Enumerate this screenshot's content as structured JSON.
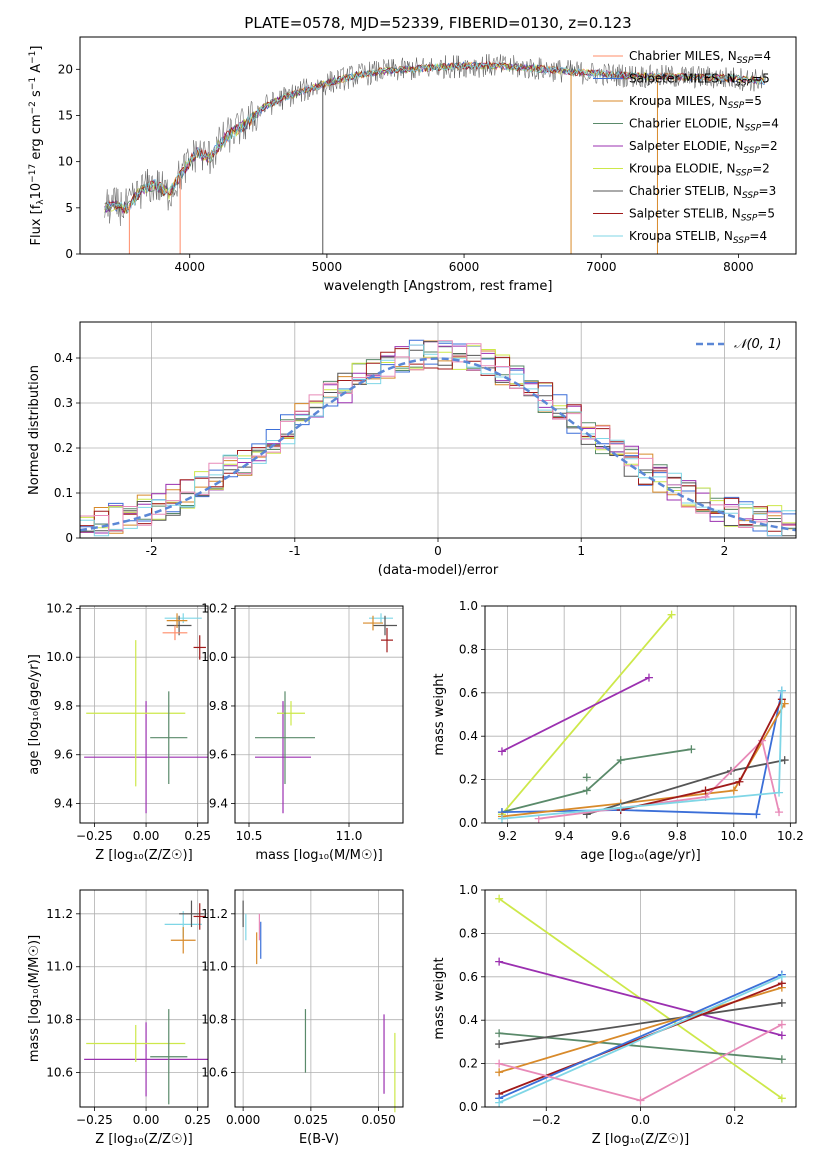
{
  "page_title": "PLATE=0578, MJD=52339, FIBERID=0130, z=0.123",
  "colors": {
    "chab_miles": "#ff8c69",
    "salp_miles": "#3b6fd8",
    "krou_miles": "#d88a2a",
    "chab_elodie": "#5a8a6a",
    "salp_elodie": "#9b30b0",
    "krou_elodie": "#cde84a",
    "chab_stelib": "#555555",
    "salp_stelib": "#a01a1a",
    "krou_stelib": "#7fd6e6",
    "pink": "#e88ab8",
    "gauss": "#5b87d6",
    "grid": "#b0b0b0"
  },
  "chart_data": [
    {
      "type": "line",
      "id": "spectrum",
      "xlabel": "wavelength [Angstrom, rest frame]",
      "ylabel_parts": [
        "Flux [f",
        "λ",
        "10",
        "−17",
        " erg cm",
        "−2",
        " s",
        "−1",
        " A",
        "−1",
        "]"
      ],
      "xlim": [
        3200,
        8420
      ],
      "ylim": [
        0,
        23.5
      ],
      "xticks": [
        4000,
        5000,
        6000,
        7000,
        8000
      ],
      "yticks": [
        0,
        5,
        10,
        15,
        20
      ],
      "grid": false,
      "legend_position": "top-right",
      "continuum": {
        "x": [
          3380,
          3450,
          3550,
          3650,
          3750,
          3850,
          3950,
          4050,
          4150,
          4250,
          4400,
          4550,
          4700,
          4850,
          5000,
          5200,
          5400,
          5600,
          5800,
          6000,
          6200,
          6400,
          6600,
          6800,
          7000,
          7200,
          7400,
          7600,
          7800,
          8000,
          8200
        ],
        "y": [
          5,
          5.2,
          5,
          7,
          7.5,
          6.5,
          9,
          11,
          10.5,
          12.5,
          14,
          16,
          17,
          17.8,
          18.5,
          19.3,
          19.8,
          20,
          20.2,
          20.4,
          20.4,
          20.2,
          20,
          19.7,
          19.5,
          19.3,
          19.2,
          19.2,
          19.1,
          19,
          18.7
        ]
      },
      "spikes": [
        {
          "x": 3560,
          "y": 0
        },
        {
          "x": 3930,
          "y": 0
        },
        {
          "x": 4970,
          "y": 0
        },
        {
          "x": 6780,
          "y": 0
        },
        {
          "x": 7410,
          "y": 0
        }
      ],
      "series": [
        {
          "key": "chab_miles",
          "sub": "SSP",
          "n": "4",
          "label": "Chabrier MILES"
        },
        {
          "key": "salp_miles",
          "sub": "SSP",
          "n": "5",
          "label": "Salpeter MILES"
        },
        {
          "key": "krou_miles",
          "sub": "SSP",
          "n": "5",
          "label": "Kroupa MILES"
        },
        {
          "key": "chab_elodie",
          "sub": "SSP",
          "n": "4",
          "label": "Chabrier ELODIE"
        },
        {
          "key": "salp_elodie",
          "sub": "SSP",
          "n": "2",
          "label": "Salpeter ELODIE"
        },
        {
          "key": "krou_elodie",
          "sub": "SSP",
          "n": "2",
          "label": "Kroupa ELODIE"
        },
        {
          "key": "chab_stelib",
          "sub": "SSP",
          "n": "3",
          "label": "Chabrier STELIB"
        },
        {
          "key": "salp_stelib",
          "sub": "SSP",
          "n": "5",
          "label": "Salpeter STELIB"
        },
        {
          "key": "krou_stelib",
          "sub": "SSP",
          "n": "4",
          "label": "Kroupa STELIB"
        }
      ]
    },
    {
      "type": "histogram",
      "id": "residuals",
      "xlabel": "(data-model)/error",
      "ylabel": "Normed distribution",
      "xlim": [
        -2.5,
        2.5
      ],
      "ylim": [
        0,
        0.48
      ],
      "xticks": [
        -2,
        -1,
        0,
        1,
        2
      ],
      "yticks": [
        0,
        0.1,
        0.2,
        0.3,
        0.4
      ],
      "grid": true,
      "legend_position": "top-right",
      "legend_label": "𝒩(0, 1)",
      "bin_width": 0.1,
      "series_keys": [
        "salp_miles",
        "krou_miles",
        "chab_elodie",
        "salp_elodie",
        "krou_elodie",
        "chab_stelib",
        "salp_stelib",
        "krou_stelib",
        "pink"
      ]
    },
    {
      "type": "errorbar",
      "id": "age_vs_z",
      "xlabel": "Z [log₁₀(Z/Z☉)]",
      "ylabel": "age  [log₁₀(age/yr)]",
      "xlim": [
        -0.32,
        0.3
      ],
      "ylim": [
        9.32,
        10.21
      ],
      "xticks": [
        -0.25,
        0,
        0.25
      ],
      "xtick_labels": [
        "−0.25",
        "0.00",
        "0.25"
      ],
      "yticks": [
        9.4,
        9.6,
        9.8,
        10,
        10.2
      ],
      "ytick_labels": [
        "9.4",
        "9.6",
        "9.8",
        "10.0",
        "10.2"
      ],
      "grid": true,
      "points": [
        {
          "key": "salp_elodie",
          "x": 0,
          "xerr": 0.3,
          "y": 9.59,
          "yerr": 0.23
        },
        {
          "key": "krou_elodie",
          "x": -0.05,
          "xerr": 0.24,
          "y": 9.77,
          "yerr": 0.3
        },
        {
          "key": "chab_elodie",
          "x": 0.11,
          "xerr": 0.09,
          "y": 9.67,
          "yerr": 0.19
        },
        {
          "key": "krou_stelib",
          "x": 0.18,
          "xerr": 0.09,
          "y": 10.16,
          "yerr": 0.02
        },
        {
          "key": "chab_stelib",
          "x": 0.16,
          "xerr": 0.06,
          "y": 10.13,
          "yerr": 0.04
        },
        {
          "key": "krou_miles",
          "x": 0.15,
          "xerr": 0.05,
          "y": 10.15,
          "yerr": 0.03
        },
        {
          "key": "chab_miles",
          "x": 0.14,
          "xerr": 0.06,
          "y": 10.1,
          "yerr": 0.03
        },
        {
          "key": "salp_stelib",
          "x": 0.26,
          "xerr": 0.03,
          "y": 10.04,
          "yerr": 0.05
        }
      ]
    },
    {
      "type": "errorbar",
      "id": "age_vs_mass",
      "xlabel": "mass [log₁₀(M/M☉)]",
      "ylabel": "",
      "xlim": [
        10.43,
        11.27
      ],
      "ylim": [
        9.32,
        10.21
      ],
      "xticks": [
        10.5,
        11
      ],
      "xtick_labels": [
        "10.5",
        "11.0"
      ],
      "yticks": [
        9.4,
        9.6,
        9.8,
        10,
        10.2
      ],
      "ytick_labels": [
        "9.4",
        "9.6",
        "9.8",
        "10.0",
        "10.2"
      ],
      "grid": true,
      "points": [
        {
          "key": "salp_elodie",
          "x": 10.67,
          "xerr": 0.14,
          "y": 9.59,
          "yerr": 0.23
        },
        {
          "key": "krou_elodie",
          "x": 10.71,
          "xerr": 0.07,
          "y": 9.77,
          "yerr": 0.05
        },
        {
          "key": "chab_elodie",
          "x": 10.68,
          "xerr": 0.15,
          "y": 9.67,
          "yerr": 0.19
        },
        {
          "key": "krou_stelib",
          "x": 11.16,
          "xerr": 0.06,
          "y": 10.16,
          "yerr": 0.02
        },
        {
          "key": "chab_stelib",
          "x": 11.18,
          "xerr": 0.06,
          "y": 10.13,
          "yerr": 0.04
        },
        {
          "key": "krou_miles",
          "x": 11.12,
          "xerr": 0.05,
          "y": 10.14,
          "yerr": 0.03
        },
        {
          "key": "salp_stelib",
          "x": 11.19,
          "xerr": 0.03,
          "y": 10.07,
          "yerr": 0.05
        }
      ]
    },
    {
      "type": "line",
      "id": "weight_vs_age",
      "xlabel": "age  [log₁₀(age/yr)]",
      "ylabel": "mass weight",
      "xlim": [
        9.12,
        10.22
      ],
      "ylim": [
        0,
        1
      ],
      "xticks": [
        9.2,
        9.4,
        9.6,
        9.8,
        10,
        10.2
      ],
      "xtick_labels": [
        "9.2",
        "9.4",
        "9.6",
        "9.8",
        "10.0",
        "10.2"
      ],
      "yticks": [
        0,
        0.2,
        0.4,
        0.6,
        0.8,
        1
      ],
      "ytick_labels": [
        "0.0",
        "0.2",
        "0.4",
        "0.6",
        "0.8",
        "1.0"
      ],
      "grid": true,
      "series": [
        {
          "key": "krou_elodie",
          "x": [
            9.18,
            9.78
          ],
          "y": [
            0.04,
            0.96
          ]
        },
        {
          "key": "salp_elodie",
          "x": [
            9.18,
            9.7
          ],
          "y": [
            0.33,
            0.67
          ]
        },
        {
          "key": "chab_elodie",
          "x": [
            9.18,
            9.48,
            9.6,
            9.85
          ],
          "y": [
            0.05,
            0.15,
            0.29,
            0.34
          ]
        },
        {
          "key": "chab_elodie",
          "x": [
            9.48
          ],
          "y": [
            0.21
          ]
        },
        {
          "key": "salp_miles",
          "x": [
            9.18,
            9.6,
            10.08,
            10.17
          ],
          "y": [
            0.05,
            0.06,
            0.04,
            0.61
          ]
        },
        {
          "key": "krou_miles",
          "x": [
            9.18,
            9.6,
            10,
            10.18
          ],
          "y": [
            0.03,
            0.09,
            0.15,
            0.55
          ]
        },
        {
          "key": "chab_stelib",
          "x": [
            9.48,
            9.99,
            10.18
          ],
          "y": [
            0.04,
            0.24,
            0.29
          ]
        },
        {
          "key": "pink",
          "x": [
            9.31,
            9.9,
            10.1,
            10.16
          ],
          "y": [
            0.02,
            0.12,
            0.38,
            0.05
          ]
        },
        {
          "key": "salp_stelib",
          "x": [
            9.6,
            9.9,
            10.02,
            10.17
          ],
          "y": [
            0.06,
            0.15,
            0.19,
            0.57
          ]
        },
        {
          "key": "krou_stelib",
          "x": [
            9.18,
            9.6,
            10.16,
            10.17
          ],
          "y": [
            0.02,
            0.07,
            0.14,
            0.61
          ]
        }
      ]
    },
    {
      "type": "errorbar",
      "id": "mass_vs_z",
      "xlabel": "Z [log₁₀(Z/Z☉)]",
      "ylabel": "mass [log₁₀(M/M☉)]",
      "xlim": [
        -0.32,
        0.3
      ],
      "ylim": [
        10.47,
        11.29
      ],
      "xticks": [
        -0.25,
        0,
        0.25
      ],
      "xtick_labels": [
        "−0.25",
        "0.00",
        "0.25"
      ],
      "yticks": [
        10.6,
        10.8,
        11,
        11.2
      ],
      "ytick_labels": [
        "10.6",
        "10.8",
        "11.0",
        "11.2"
      ],
      "grid": true,
      "points": [
        {
          "key": "salp_elodie",
          "x": 0,
          "xerr": 0.3,
          "y": 10.65,
          "yerr": 0.14
        },
        {
          "key": "krou_elodie",
          "x": -0.05,
          "xerr": 0.24,
          "y": 10.71,
          "yerr": 0.07
        },
        {
          "key": "chab_elodie",
          "x": 0.11,
          "xerr": 0.09,
          "y": 10.66,
          "yerr": 0.18
        },
        {
          "key": "krou_stelib",
          "x": 0.18,
          "xerr": 0.09,
          "y": 11.16,
          "yerr": 0.05
        },
        {
          "key": "chab_stelib",
          "x": 0.22,
          "xerr": 0.06,
          "y": 11.2,
          "yerr": 0.05
        },
        {
          "key": "krou_miles",
          "x": 0.18,
          "xerr": 0.06,
          "y": 11.1,
          "yerr": 0.05
        },
        {
          "key": "salp_stelib",
          "x": 0.26,
          "xerr": 0.03,
          "y": 11.19,
          "yerr": 0.05
        }
      ]
    },
    {
      "type": "errorbar",
      "id": "mass_vs_ebv",
      "xlabel": "E(B-V)",
      "ylabel": "",
      "xlim": [
        -0.003,
        0.059
      ],
      "ylim": [
        10.47,
        11.29
      ],
      "xticks": [
        0,
        0.025,
        0.05
      ],
      "xtick_labels": [
        "0.000",
        "0.025",
        "0.050"
      ],
      "yticks": [
        10.6,
        10.8,
        11,
        11.2
      ],
      "ytick_labels": [
        "10.6",
        "10.8",
        "11.0",
        "11.2"
      ],
      "grid": true,
      "points": [
        {
          "key": "chab_stelib",
          "x": 0,
          "xerr": 0,
          "y": 11.2,
          "yerr": 0.05
        },
        {
          "key": "krou_stelib",
          "x": 0.001,
          "xerr": 0,
          "y": 11.15,
          "yerr": 0.05
        },
        {
          "key": "krou_miles",
          "x": 0.005,
          "xerr": 0,
          "y": 11.07,
          "yerr": 0.06
        },
        {
          "key": "salp_miles",
          "x": 0.0065,
          "xerr": 0,
          "y": 11.1,
          "yerr": 0.07
        },
        {
          "key": "pink",
          "x": 0.006,
          "xerr": 0,
          "y": 11.15,
          "yerr": 0.05
        },
        {
          "key": "chab_elodie",
          "x": 0.023,
          "xerr": 0,
          "y": 10.72,
          "yerr": 0.12
        },
        {
          "key": "salp_elodie",
          "x": 0.052,
          "xerr": 0,
          "y": 10.67,
          "yerr": 0.15
        },
        {
          "key": "krou_elodie",
          "x": 0.056,
          "xerr": 0,
          "y": 10.6,
          "yerr": 0.15
        }
      ]
    },
    {
      "type": "line",
      "id": "weight_vs_z",
      "xlabel": "Z [log₁₀(Z/Z☉)]",
      "ylabel": "mass weight",
      "xlim": [
        -0.33,
        0.33
      ],
      "ylim": [
        0,
        1
      ],
      "xticks": [
        -0.2,
        0,
        0.2
      ],
      "xtick_labels": [
        "−0.2",
        "0.0",
        "0.2"
      ],
      "yticks": [
        0,
        0.2,
        0.4,
        0.6,
        0.8,
        1
      ],
      "ytick_labels": [
        "0.0",
        "0.2",
        "0.4",
        "0.6",
        "0.8",
        "1.0"
      ],
      "grid": true,
      "series": [
        {
          "key": "krou_elodie",
          "x": [
            -0.3,
            0.3
          ],
          "y": [
            0.96,
            0.04
          ]
        },
        {
          "key": "salp_elodie",
          "x": [
            -0.3,
            0.3
          ],
          "y": [
            0.67,
            0.33
          ]
        },
        {
          "key": "chab_elodie",
          "x": [
            -0.3,
            0.3
          ],
          "y": [
            0.34,
            0.22
          ]
        },
        {
          "key": "chab_stelib",
          "x": [
            -0.3,
            0.3
          ],
          "y": [
            0.29,
            0.48
          ]
        },
        {
          "key": "krou_miles",
          "x": [
            -0.3,
            0.3
          ],
          "y": [
            0.16,
            0.55
          ]
        },
        {
          "key": "salp_stelib",
          "x": [
            -0.3,
            0.3
          ],
          "y": [
            0.06,
            0.57
          ]
        },
        {
          "key": "salp_miles",
          "x": [
            -0.3,
            0.3
          ],
          "y": [
            0.04,
            0.61
          ]
        },
        {
          "key": "krou_stelib",
          "x": [
            -0.3,
            0.3
          ],
          "y": [
            0.02,
            0.6
          ]
        },
        {
          "key": "pink",
          "x": [
            -0.3,
            0,
            0.3
          ],
          "y": [
            0.2,
            0.03,
            0.38
          ]
        }
      ]
    }
  ]
}
